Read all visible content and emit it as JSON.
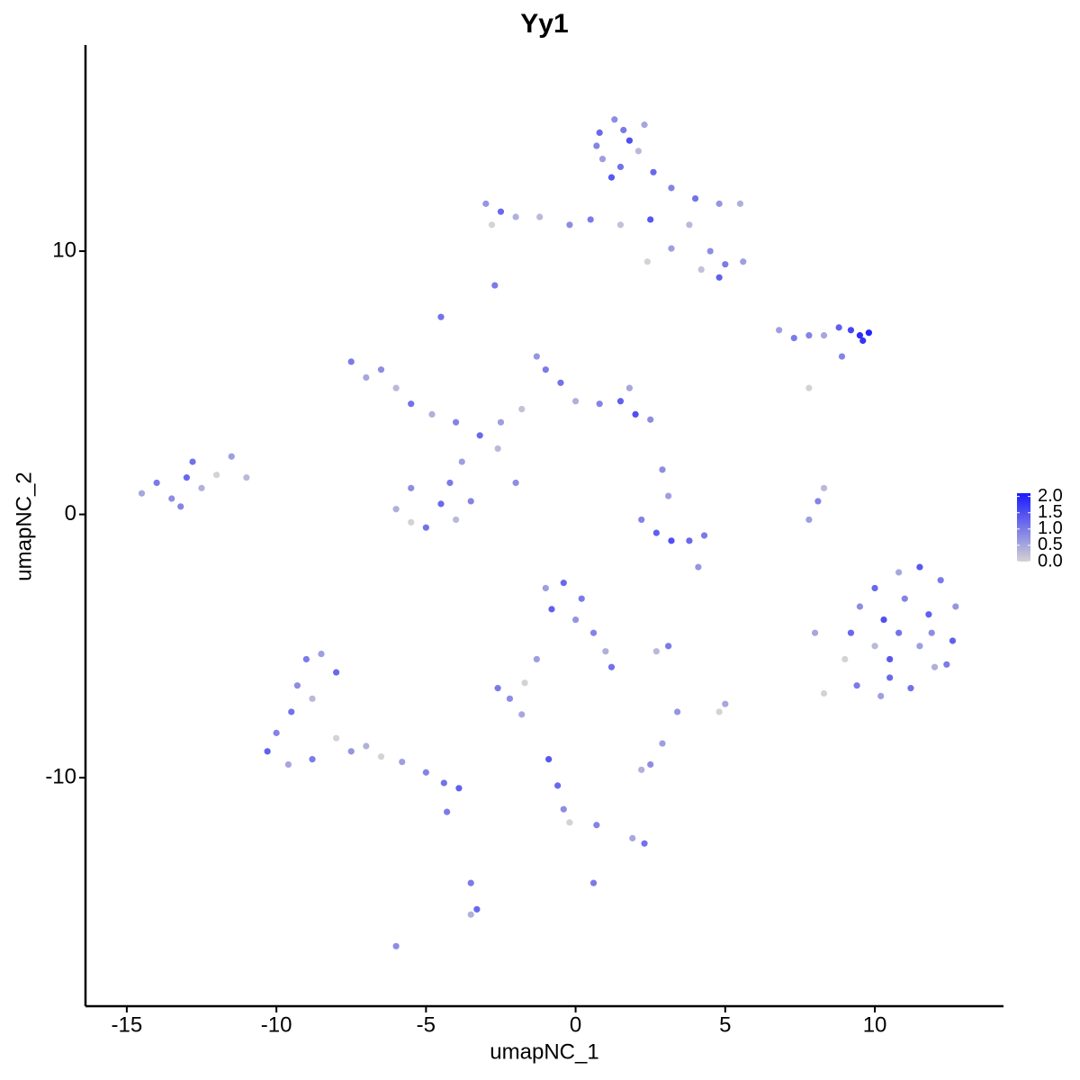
{
  "chart_data": {
    "type": "scatter",
    "title": "Yy1",
    "x_label": "umapNC_1",
    "y_label": "umapNC_2",
    "xlim": [
      -16.38,
      14.3
    ],
    "ylim": [
      -18.68,
      17.83
    ],
    "xticks": [
      -15,
      -10,
      -5,
      0,
      5,
      10
    ],
    "yticks": [
      -10,
      0,
      10
    ],
    "low_color": "#d3d3d3",
    "high_color": "#1a1aff",
    "colorlim": [
      0,
      2.1
    ],
    "colorticks": [
      {
        "value": 0,
        "label": "0.0"
      },
      {
        "value": 0.5,
        "label": "0.5"
      },
      {
        "value": 1,
        "label": "1.0"
      },
      {
        "value": 1.5,
        "label": "1.5"
      },
      {
        "value": 2,
        "label": "2.0"
      }
    ],
    "x": [
      0.8,
      1.3,
      1.8,
      0.9,
      1.5,
      2.1,
      1.2,
      0.7,
      2.3,
      1.6,
      2.6,
      3.2,
      4.0,
      4.8,
      5.5,
      3.8,
      4.5,
      5.0,
      5.6,
      4.8,
      4.2,
      3.2,
      2.5,
      -3.0,
      -2.5,
      -2.0,
      -2.8,
      -1.2,
      -0.2,
      0.5,
      1.5,
      -2.7,
      -4.5,
      2.4,
      6.8,
      7.3,
      7.8,
      8.3,
      8.8,
      9.2,
      9.5,
      9.8,
      9.6,
      8.9,
      7.8,
      -7.5,
      -7.0,
      -6.5,
      -6.0,
      -5.5,
      -4.8,
      -4.0,
      -3.2,
      -2.5,
      -1.8,
      -1.0,
      -1.3,
      -0.5,
      0.0,
      0.8,
      1.5,
      2.0,
      2.5,
      1.8,
      -3.8,
      -4.2,
      -5.5,
      -6.0,
      -5.0,
      -4.0,
      -3.5,
      -5.5,
      -4.5,
      -2.0,
      -2.6,
      -14.5,
      -14.0,
      -13.5,
      -13.0,
      -12.5,
      -12.0,
      -11.5,
      -13.2,
      -12.8,
      -11.0,
      2.2,
      2.7,
      3.2,
      3.8,
      4.3,
      3.1,
      2.9,
      4.1,
      7.8,
      8.1,
      8.3,
      9.5,
      10.0,
      10.8,
      11.5,
      12.2,
      12.7,
      12.6,
      12.0,
      11.2,
      10.2,
      9.4,
      9.0,
      9.2,
      10.3,
      11.0,
      11.8,
      11.5,
      10.5,
      10.0,
      10.8,
      11.9,
      10.5,
      8.0,
      8.3,
      12.4,
      -1.0,
      -0.4,
      0.2,
      -0.8,
      0.0,
      0.6,
      1.0,
      1.2,
      -2.6,
      -2.2,
      -1.7,
      -1.3,
      -9.0,
      -8.5,
      -8.0,
      -9.3,
      -8.8,
      -9.5,
      -10.0,
      -10.3,
      -9.6,
      -8.8,
      -8.0,
      -7.5,
      -7.0,
      -6.5,
      -5.8,
      -5.0,
      -4.4,
      -3.9,
      -4.3,
      2.5,
      2.2,
      2.9,
      3.1,
      2.7,
      5.0,
      4.8,
      3.4,
      -0.9,
      -0.6,
      -0.4,
      -0.2,
      0.7,
      2.3,
      1.9,
      0.6,
      -3.5,
      -3.3,
      -3.5,
      -6.0,
      -1.8
    ],
    "y": [
      14.5,
      15.0,
      14.2,
      13.5,
      13.2,
      13.8,
      12.8,
      14.0,
      14.8,
      14.6,
      13.0,
      12.4,
      12.0,
      11.8,
      11.8,
      11.0,
      10.0,
      9.5,
      9.6,
      9.0,
      9.3,
      10.1,
      11.2,
      11.8,
      11.5,
      11.3,
      11.0,
      11.3,
      11.0,
      11.2,
      11.0,
      8.7,
      7.5,
      9.6,
      7.0,
      6.7,
      6.8,
      6.8,
      7.1,
      7.0,
      6.8,
      6.9,
      6.6,
      6.0,
      4.8,
      5.8,
      5.2,
      5.5,
      4.8,
      4.2,
      3.8,
      3.5,
      3.0,
      3.5,
      4.0,
      5.5,
      6.0,
      5.0,
      4.3,
      4.2,
      4.3,
      3.8,
      3.6,
      4.8,
      2.0,
      1.2,
      1.0,
      0.2,
      -0.5,
      -0.2,
      0.5,
      -0.3,
      0.4,
      1.2,
      2.5,
      0.8,
      1.2,
      0.6,
      1.4,
      1.0,
      1.5,
      2.2,
      0.3,
      2.0,
      1.4,
      -0.2,
      -0.7,
      -1.0,
      -1.0,
      -0.8,
      0.7,
      1.7,
      -2.0,
      -0.2,
      0.5,
      1.0,
      -3.5,
      -2.8,
      -2.2,
      -2.0,
      -2.5,
      -3.5,
      -4.8,
      -5.8,
      -6.6,
      -6.9,
      -6.5,
      -5.5,
      -4.5,
      -4.0,
      -3.2,
      -3.8,
      -5.0,
      -5.5,
      -5.0,
      -4.5,
      -4.5,
      -6.2,
      -4.5,
      -6.8,
      -5.7,
      -2.8,
      -2.6,
      -3.2,
      -3.6,
      -4.0,
      -4.5,
      -5.2,
      -5.8,
      -6.6,
      -7.0,
      -6.4,
      -5.5,
      -5.5,
      -5.3,
      -6.0,
      -6.5,
      -7.0,
      -7.5,
      -8.3,
      -9.0,
      -9.5,
      -9.3,
      -8.5,
      -9.0,
      -8.8,
      -9.2,
      -9.4,
      -9.8,
      -10.2,
      -10.4,
      -11.3,
      -9.5,
      -9.7,
      -8.7,
      -5.0,
      -5.2,
      -7.2,
      -7.5,
      -7.5,
      -9.3,
      -10.3,
      -11.2,
      -11.7,
      -11.8,
      -12.5,
      -12.3,
      -14.0,
      -14.0,
      -15.0,
      -15.2,
      -16.4,
      -7.6
    ],
    "values": [
      1.2,
      0.8,
      1.5,
      0.6,
      1.1,
      0.3,
      1.4,
      0.9,
      0.5,
      1.0,
      1.2,
      0.9,
      1.1,
      0.7,
      0.4,
      0.3,
      0.8,
      1.0,
      0.6,
      1.3,
      0.2,
      0.6,
      1.4,
      0.7,
      1.2,
      0.4,
      0.0,
      0.3,
      0.8,
      1.0,
      0.2,
      1.0,
      1.1,
      0.0,
      0.6,
      1.0,
      0.9,
      0.5,
      1.3,
      1.6,
      1.9,
      2.0,
      1.8,
      0.9,
      0.0,
      1.0,
      0.5,
      0.8,
      0.3,
      1.1,
      0.4,
      0.9,
      1.2,
      0.6,
      0.2,
      1.0,
      0.7,
      1.1,
      0.4,
      0.9,
      1.3,
      1.5,
      0.8,
      0.5,
      0.6,
      1.0,
      0.8,
      0.4,
      1.1,
      0.3,
      0.9,
      0.0,
      1.2,
      0.8,
      0.3,
      0.5,
      1.0,
      0.8,
      1.2,
      0.4,
      0.0,
      0.6,
      0.9,
      1.1,
      0.3,
      0.9,
      1.3,
      1.5,
      1.2,
      1.0,
      0.6,
      0.8,
      0.7,
      0.6,
      0.9,
      0.3,
      0.8,
      1.2,
      0.5,
      1.4,
      1.0,
      0.7,
      1.3,
      0.4,
      1.1,
      0.6,
      1.0,
      0.0,
      1.2,
      1.5,
      0.9,
      1.3,
      0.6,
      1.4,
      0.3,
      1.1,
      0.8,
      1.2,
      0.5,
      0.0,
      1.0,
      0.6,
      1.2,
      1.0,
      1.3,
      0.7,
      0.9,
      0.4,
      1.1,
      1.0,
      0.8,
      0.0,
      0.6,
      1.0,
      0.6,
      1.2,
      0.8,
      0.3,
      1.1,
      0.9,
      1.3,
      0.5,
      1.0,
      0.0,
      0.7,
      0.4,
      0.0,
      0.6,
      0.9,
      1.1,
      1.3,
      1.0,
      0.8,
      0.4,
      0.6,
      1.0,
      0.3,
      0.5,
      0.0,
      0.7,
      1.4,
      1.2,
      0.8,
      0.0,
      0.9,
      1.1,
      0.5,
      1.0,
      1.0,
      1.2,
      0.4,
      0.8,
      0.5
    ]
  }
}
